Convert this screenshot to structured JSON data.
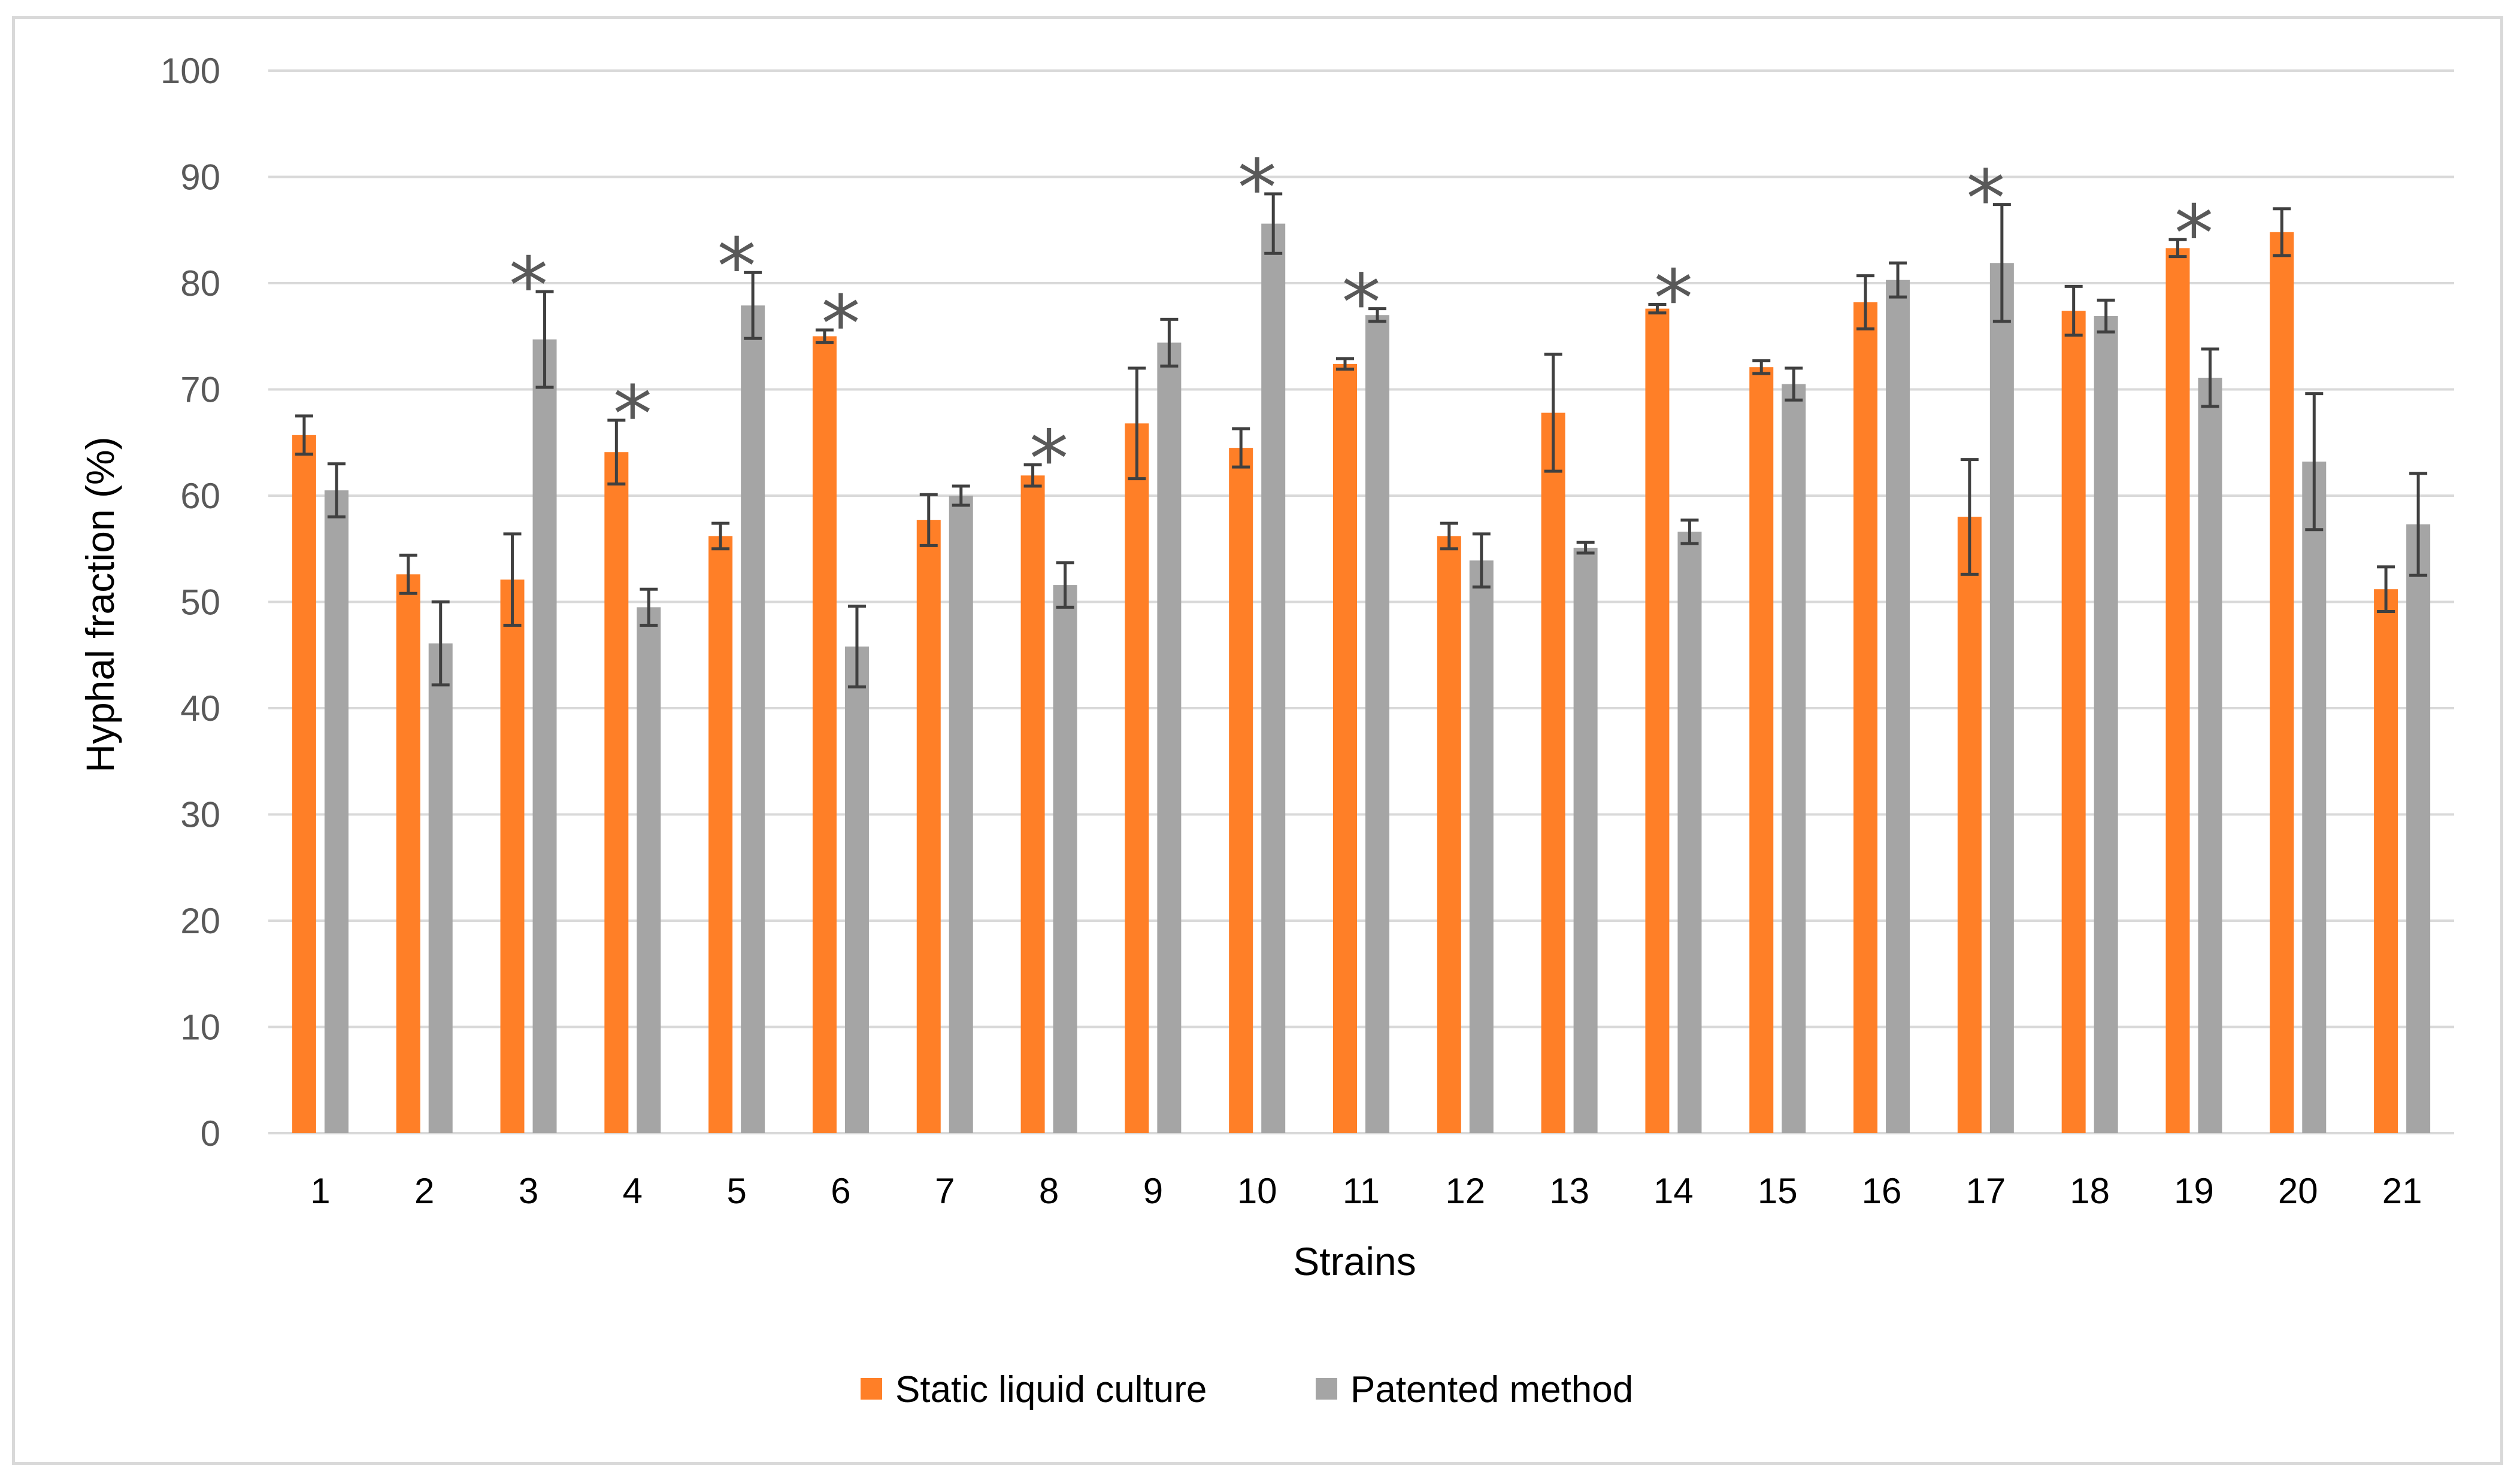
{
  "chart_data": {
    "type": "bar",
    "title": "",
    "xlabel": "Strains",
    "ylabel": "Hyphal fraction (%)",
    "ylim": [
      0,
      100
    ],
    "yticks": [
      0,
      10,
      20,
      30,
      40,
      50,
      60,
      70,
      80,
      90,
      100
    ],
    "grid": true,
    "legend_position": "bottom",
    "categories": [
      "1",
      "2",
      "3",
      "4",
      "5",
      "6",
      "7",
      "8",
      "9",
      "10",
      "11",
      "12",
      "13",
      "14",
      "15",
      "16",
      "17",
      "18",
      "19",
      "20",
      "21"
    ],
    "series": [
      {
        "name": "Static liquid culture",
        "color": "#ff7f27",
        "values": [
          65.7,
          52.6,
          52.1,
          64.1,
          56.2,
          75.0,
          57.7,
          61.9,
          66.8,
          64.5,
          72.4,
          56.2,
          67.8,
          77.6,
          72.1,
          78.2,
          58.0,
          77.4,
          83.3,
          84.8,
          51.2
        ],
        "errors": [
          1.8,
          1.8,
          4.3,
          3.0,
          1.2,
          0.6,
          2.4,
          1.0,
          5.2,
          1.8,
          0.5,
          1.2,
          5.5,
          0.4,
          0.6,
          2.5,
          5.4,
          2.3,
          0.8,
          2.2,
          2.1
        ]
      },
      {
        "name": "Patented method",
        "color": "#a5a5a5",
        "values": [
          60.5,
          46.1,
          74.7,
          49.5,
          77.9,
          45.8,
          60.0,
          51.6,
          74.4,
          85.6,
          77.0,
          53.9,
          55.1,
          56.6,
          70.5,
          80.3,
          81.9,
          76.9,
          71.1,
          63.2,
          57.3
        ],
        "errors": [
          2.5,
          3.9,
          4.5,
          1.7,
          3.1,
          3.8,
          0.9,
          2.1,
          2.2,
          2.8,
          0.6,
          2.5,
          0.5,
          1.1,
          1.5,
          1.6,
          5.5,
          1.5,
          2.7,
          6.4,
          4.8
        ]
      }
    ],
    "significance": [
      {
        "category": "3",
        "label": "*"
      },
      {
        "category": "4",
        "label": "*"
      },
      {
        "category": "5",
        "label": "*"
      },
      {
        "category": "6",
        "label": "*"
      },
      {
        "category": "8",
        "label": "*"
      },
      {
        "category": "10",
        "label": "*"
      },
      {
        "category": "11",
        "label": "*"
      },
      {
        "category": "14",
        "label": "*"
      },
      {
        "category": "17",
        "label": "*"
      },
      {
        "category": "19",
        "label": "*"
      }
    ]
  }
}
